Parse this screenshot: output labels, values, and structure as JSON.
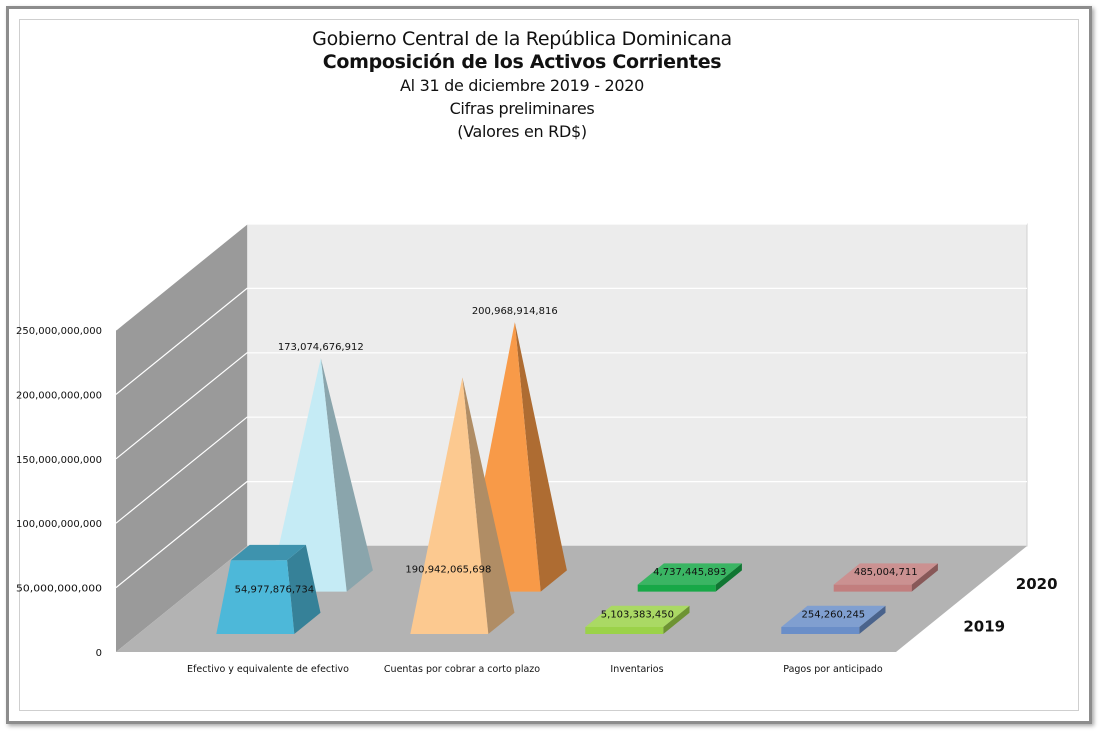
{
  "chart_data": {
    "type": "bar",
    "style": "3d-pyramid",
    "title": "Gobierno Central de la República Dominicana",
    "subtitle": "Composición de los Activos Corrientes",
    "subtitle_lines": [
      "Al 31 de diciembre 2019 - 2020",
      "Cifras preliminares",
      "(Valores en RD$)"
    ],
    "categories": [
      "Efectivo y equivalente de efectivo",
      "Cuentas por cobrar a corto plazo",
      "Inventarios",
      "Pagos por anticipado"
    ],
    "series": [
      {
        "name": "2019",
        "values": [
          54977876734,
          190942065698,
          5103383450,
          254260245
        ],
        "value_labels": [
          "54,977,876,734",
          "190,942,065,698",
          "5,103,383,450",
          "254,260,245"
        ],
        "colors": [
          "#4db8d9",
          "#fcc990",
          "#9bd249",
          "#6a8ec8"
        ]
      },
      {
        "name": "2020",
        "values": [
          173074676912,
          200968914816,
          4737445893,
          485004711
        ],
        "value_labels": [
          "173,074,676,912",
          "200,968,914,816",
          "4,737,445,893",
          "485,004,711"
        ],
        "colors": [
          "#c5ebf5",
          "#f89a48",
          "#17a847",
          "#c27e7e"
        ]
      }
    ],
    "y_ticks": [
      "0",
      "50,000,000,000",
      "100,000,000,000",
      "150,000,000,000",
      "200,000,000,000",
      "250,000,000,000"
    ],
    "y_tick_values": [
      0,
      50000000000,
      100000000000,
      150000000000,
      200000000000,
      250000000000
    ],
    "ylim": [
      0,
      250000000000
    ],
    "grid": true
  }
}
